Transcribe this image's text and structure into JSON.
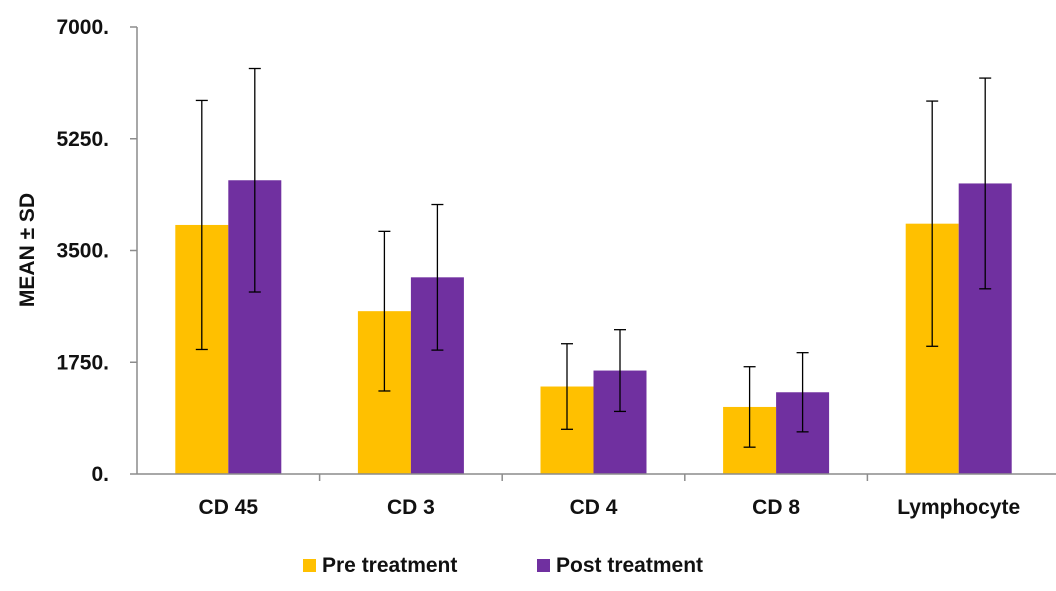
{
  "chart_data": {
    "type": "bar",
    "title": "",
    "xlabel": "",
    "ylabel": "MEAN ± SD",
    "ylim": [
      0,
      7000
    ],
    "yticks": [
      0,
      1750,
      3500,
      5250,
      7000
    ],
    "ytick_labels": [
      "0.",
      "1750.",
      "3500.",
      "5250.",
      "7000."
    ],
    "categories": [
      "CD 45",
      "CD 3",
      "CD 4",
      "CD 8",
      "Lymphocyte"
    ],
    "series": [
      {
        "name": "Pre treatment",
        "color": "#FFC000",
        "values": [
          3900,
          2550,
          1370,
          1050,
          3920
        ],
        "errors": [
          1950,
          1250,
          670,
          630,
          1920
        ]
      },
      {
        "name": "Post treatment",
        "color": "#7030A0",
        "values": [
          4600,
          3080,
          1620,
          1280,
          4550
        ],
        "errors": [
          1750,
          1140,
          640,
          620,
          1650
        ]
      }
    ],
    "legend_position": "bottom",
    "grid": false
  }
}
